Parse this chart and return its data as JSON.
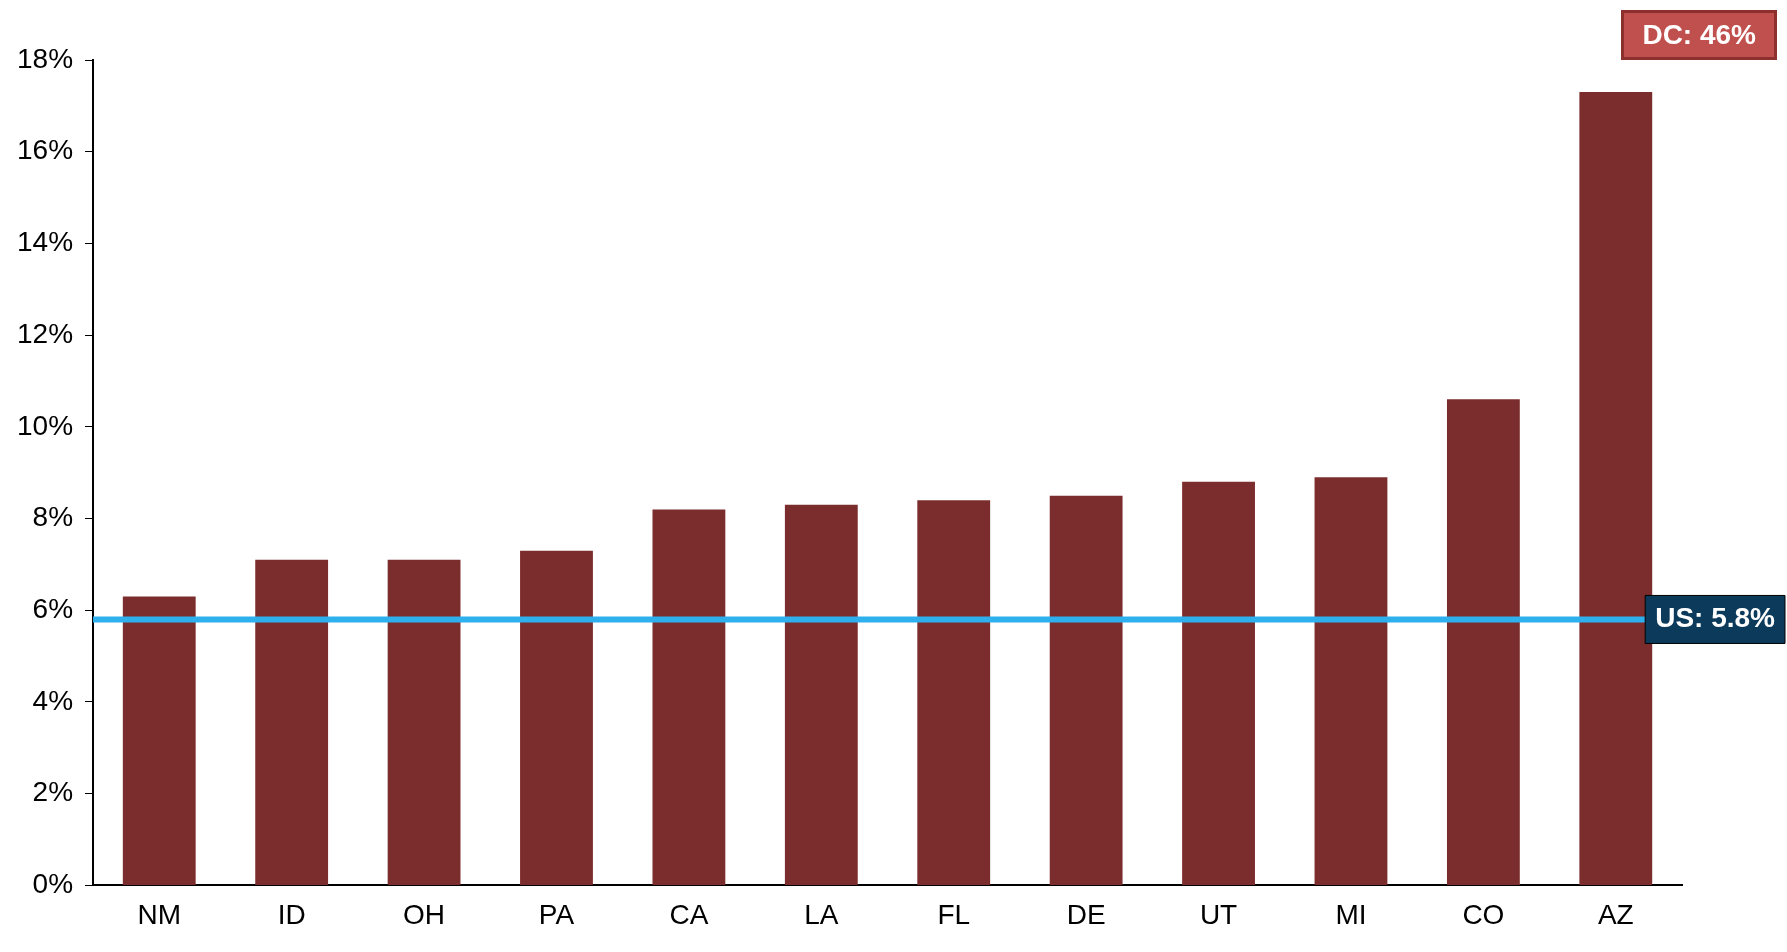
{
  "chart_data": {
    "type": "bar",
    "categories": [
      "NM",
      "ID",
      "OH",
      "PA",
      "CA",
      "LA",
      "FL",
      "DE",
      "UT",
      "MI",
      "CO",
      "AZ"
    ],
    "values": [
      6.3,
      7.1,
      7.1,
      7.3,
      8.2,
      8.3,
      8.4,
      8.5,
      8.8,
      8.9,
      10.6,
      17.3
    ],
    "color": "#7b2c2c",
    "ylim": [
      0,
      18
    ],
    "yticks": [
      {
        "value": 0,
        "label": "0%"
      },
      {
        "value": 2,
        "label": "2%"
      },
      {
        "value": 4,
        "label": "4%"
      },
      {
        "value": 6,
        "label": "6%"
      },
      {
        "value": 8,
        "label": "8%"
      },
      {
        "value": 10,
        "label": "10%"
      },
      {
        "value": 12,
        "label": "12%"
      },
      {
        "value": 14,
        "label": "14%"
      },
      {
        "value": 16,
        "label": "16%"
      },
      {
        "value": 18,
        "label": "18%"
      }
    ],
    "ref_lines": [
      {
        "axis": "y",
        "value": 5.8,
        "label": "US: 5.8%",
        "color": "#2eb0ee"
      }
    ],
    "annotations": [
      "DC: 46%"
    ],
    "grid": false,
    "legend": false
  }
}
